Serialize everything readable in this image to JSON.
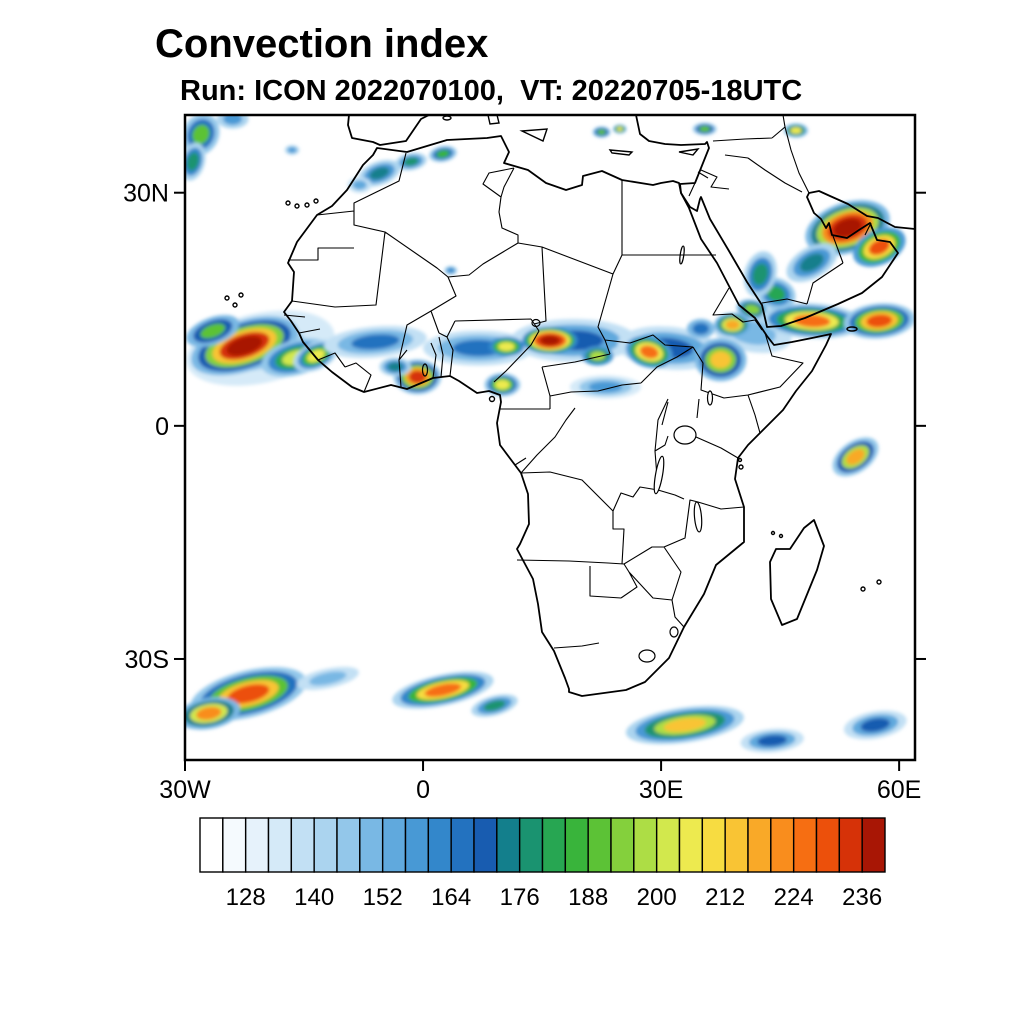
{
  "header": {
    "title": "Convection index",
    "subtitle": "Run: ICON 2022070100,  VT: 20220705-18UTC"
  },
  "axes": {
    "lon_min": -30,
    "lon_max": 62,
    "lat_min": -43,
    "lat_max": 40,
    "x_ticks": [
      {
        "lon": -30,
        "label": "30W"
      },
      {
        "lon": 0,
        "label": "0"
      },
      {
        "lon": 30,
        "label": "30E"
      },
      {
        "lon": 60,
        "label": "60E"
      }
    ],
    "y_ticks": [
      {
        "lat": 30,
        "label": "30N"
      },
      {
        "lat": 0,
        "label": "0"
      },
      {
        "lat": -30,
        "label": "30S"
      }
    ]
  },
  "colorbar": {
    "level_min": 120,
    "level_step": 4,
    "colors": [
      "#FFFFFF",
      "#F5FAFE",
      "#E6F2FB",
      "#D5EAF8",
      "#C2E0F4",
      "#ABD4EF",
      "#93C7EA",
      "#79B8E4",
      "#60A9DD",
      "#4899D5",
      "#3387CB",
      "#2372BF",
      "#185CB0",
      "#137F8C",
      "#1A9370",
      "#27A652",
      "#39B43B",
      "#5CC236",
      "#84D03C",
      "#ADDD45",
      "#D2E84D",
      "#EDEA4F",
      "#F7DC41",
      "#F9C434",
      "#F9A928",
      "#F98D1D",
      "#F66E12",
      "#EC500B",
      "#D63208",
      "#A81605"
    ],
    "tick_labels": [
      128,
      140,
      152,
      164,
      176,
      188,
      200,
      212,
      224,
      236
    ]
  },
  "chart_data": {
    "type": "heatmap",
    "title": "Convection index",
    "model_run": "ICON 2022070100",
    "valid_time": "20220705-18UTC",
    "lon_range": [
      -30,
      62
    ],
    "lat_range": [
      -43,
      40
    ],
    "value_levels": {
      "min": 120,
      "step": 4,
      "count": 30
    },
    "value_tick_labels": [
      128,
      140,
      152,
      164,
      176,
      188,
      200,
      212,
      224,
      236
    ],
    "legend_position": "bottom",
    "region_fields": [
      "lon_center_deg",
      "lat_center_deg",
      "width_deg",
      "height_deg",
      "rotation_deg",
      "intensity_levels_outer_to_core"
    ],
    "regions": [
      [
        -20.5,
        10.0,
        19,
        9,
        -12,
        [
          132,
          142
        ]
      ],
      [
        -22.5,
        10.3,
        14,
        6.5,
        -18,
        [
          148,
          168,
          192,
          214,
          232,
          237
        ]
      ],
      [
        -16.0,
        8.8,
        9,
        4.5,
        -15,
        [
          144,
          162,
          182,
          203
        ]
      ],
      [
        -26.5,
        12.2,
        7,
        3.5,
        -20,
        [
          150,
          170,
          191
        ]
      ],
      [
        -0.7,
        6.3,
        6,
        4.5,
        0,
        [
          146,
          168,
          192,
          216,
          233
        ]
      ],
      [
        -3.5,
        7.6,
        4,
        2.4,
        0,
        [
          142,
          158,
          175
        ]
      ],
      [
        -13.5,
        9.0,
        6,
        3.5,
        -25,
        [
          142,
          162,
          184,
          205
        ]
      ],
      [
        -6.0,
        10.8,
        13,
        4.0,
        -5,
        [
          136,
          150,
          165
        ]
      ],
      [
        7.0,
        10.0,
        14,
        4.5,
        0,
        [
          136,
          150,
          165
        ]
      ],
      [
        19.0,
        11.0,
        16,
        5.5,
        0,
        [
          138,
          153,
          168
        ]
      ],
      [
        31.0,
        10.0,
        13,
        5.5,
        5,
        [
          138,
          153,
          168
        ]
      ],
      [
        41.5,
        12.0,
        10,
        5,
        10,
        [
          136,
          150
        ]
      ],
      [
        16.0,
        11.0,
        7,
        3.5,
        0,
        [
          162,
          184,
          206,
          226,
          233,
          238
        ]
      ],
      [
        10.5,
        10.2,
        4.5,
        2.5,
        0,
        [
          160,
          184,
          207
        ]
      ],
      [
        28.5,
        9.5,
        6,
        4,
        15,
        [
          158,
          180,
          204,
          227
        ]
      ],
      [
        22.0,
        9.0,
        4,
        2.5,
        0,
        [
          156,
          176,
          197
        ]
      ],
      [
        37.5,
        8.5,
        6.5,
        5.5,
        0,
        [
          150,
          170,
          192,
          215
        ]
      ],
      [
        39.0,
        13.0,
        4.5,
        3,
        0,
        [
          154,
          176,
          200,
          219
        ]
      ],
      [
        41.5,
        15.0,
        4,
        2.5,
        10,
        [
          150,
          172,
          195
        ]
      ],
      [
        35.0,
        12.5,
        3.5,
        2.5,
        0,
        [
          148,
          166
        ]
      ],
      [
        49.0,
        13.5,
        13,
        4.5,
        3,
        [
          142,
          160,
          182,
          204,
          226
        ]
      ],
      [
        57.5,
        13.5,
        9,
        4.5,
        -5,
        [
          146,
          166,
          190,
          212,
          230
        ]
      ],
      [
        44.5,
        17.0,
        5,
        4,
        20,
        [
          144,
          162,
          183
        ]
      ],
      [
        53.5,
        25.5,
        11,
        6.5,
        -18,
        [
          148,
          172,
          198,
          222,
          233,
          238
        ]
      ],
      [
        57.5,
        23.0,
        7,
        4.5,
        -25,
        [
          156,
          184,
          210,
          230
        ]
      ],
      [
        49.0,
        21.0,
        7,
        4,
        -30,
        [
          142,
          158,
          175
        ]
      ],
      [
        42.5,
        19.5,
        4,
        6,
        15,
        [
          142,
          160,
          179
        ]
      ],
      [
        -5.5,
        32.5,
        5.5,
        3,
        -20,
        [
          140,
          156,
          173
        ]
      ],
      [
        -1.5,
        34.0,
        4,
        2.2,
        -10,
        [
          140,
          158,
          177
        ]
      ],
      [
        2.5,
        35.0,
        3.5,
        2,
        -10,
        [
          144,
          164,
          187
        ]
      ],
      [
        -8.0,
        31.0,
        3,
        2,
        0,
        [
          138,
          153
        ]
      ],
      [
        -28.0,
        37.5,
        4.5,
        5.5,
        25,
        [
          144,
          166,
          191
        ]
      ],
      [
        -29.0,
        34.0,
        3,
        5,
        15,
        [
          142,
          160,
          178
        ]
      ],
      [
        22.5,
        37.8,
        2.2,
        1.4,
        0,
        [
          148,
          168,
          189
        ]
      ],
      [
        24.8,
        38.2,
        1.6,
        1.1,
        0,
        [
          156,
          182,
          207
        ]
      ],
      [
        35.5,
        38.2,
        3,
        1.6,
        0,
        [
          146,
          168,
          191
        ]
      ],
      [
        47.0,
        38.0,
        3,
        1.8,
        0,
        [
          150,
          178,
          206
        ]
      ],
      [
        54.5,
        -4.0,
        6.5,
        4,
        -35,
        [
          146,
          170,
          196,
          219
        ]
      ],
      [
        23.0,
        5.0,
        9,
        3,
        0,
        [
          134,
          146,
          159
        ]
      ],
      [
        10.0,
        5.3,
        4.5,
        3,
        0,
        [
          146,
          166,
          188,
          207
        ]
      ],
      [
        -22.0,
        -34.5,
        15,
        6,
        -14,
        [
          146,
          166,
          190,
          214,
          231
        ]
      ],
      [
        -27.0,
        -37.0,
        8,
        4,
        -10,
        [
          150,
          175,
          200,
          223
        ]
      ],
      [
        -12.0,
        -32.5,
        8,
        2.5,
        -12,
        [
          136,
          149
        ]
      ],
      [
        2.5,
        -34.0,
        13,
        4,
        -12,
        [
          142,
          162,
          186,
          208,
          226
        ]
      ],
      [
        9.0,
        -36.0,
        6,
        2.5,
        -15,
        [
          140,
          158,
          177
        ]
      ],
      [
        33.0,
        -38.5,
        15,
        4.5,
        -8,
        [
          140,
          158,
          178,
          198,
          215
        ]
      ],
      [
        44.0,
        -40.5,
        8,
        3,
        -5,
        [
          138,
          154,
          171
        ]
      ],
      [
        57.0,
        -38.5,
        8,
        3.5,
        -10,
        [
          138,
          154,
          171
        ]
      ],
      [
        -16.5,
        35.5,
        1.8,
        1.2,
        0,
        [
          140,
          157
        ]
      ],
      [
        3.5,
        20.0,
        1.6,
        1.1,
        0,
        [
          146,
          163
        ]
      ],
      [
        -24.0,
        39.5,
        4,
        2.5,
        0,
        [
          140,
          157
        ]
      ]
    ]
  }
}
